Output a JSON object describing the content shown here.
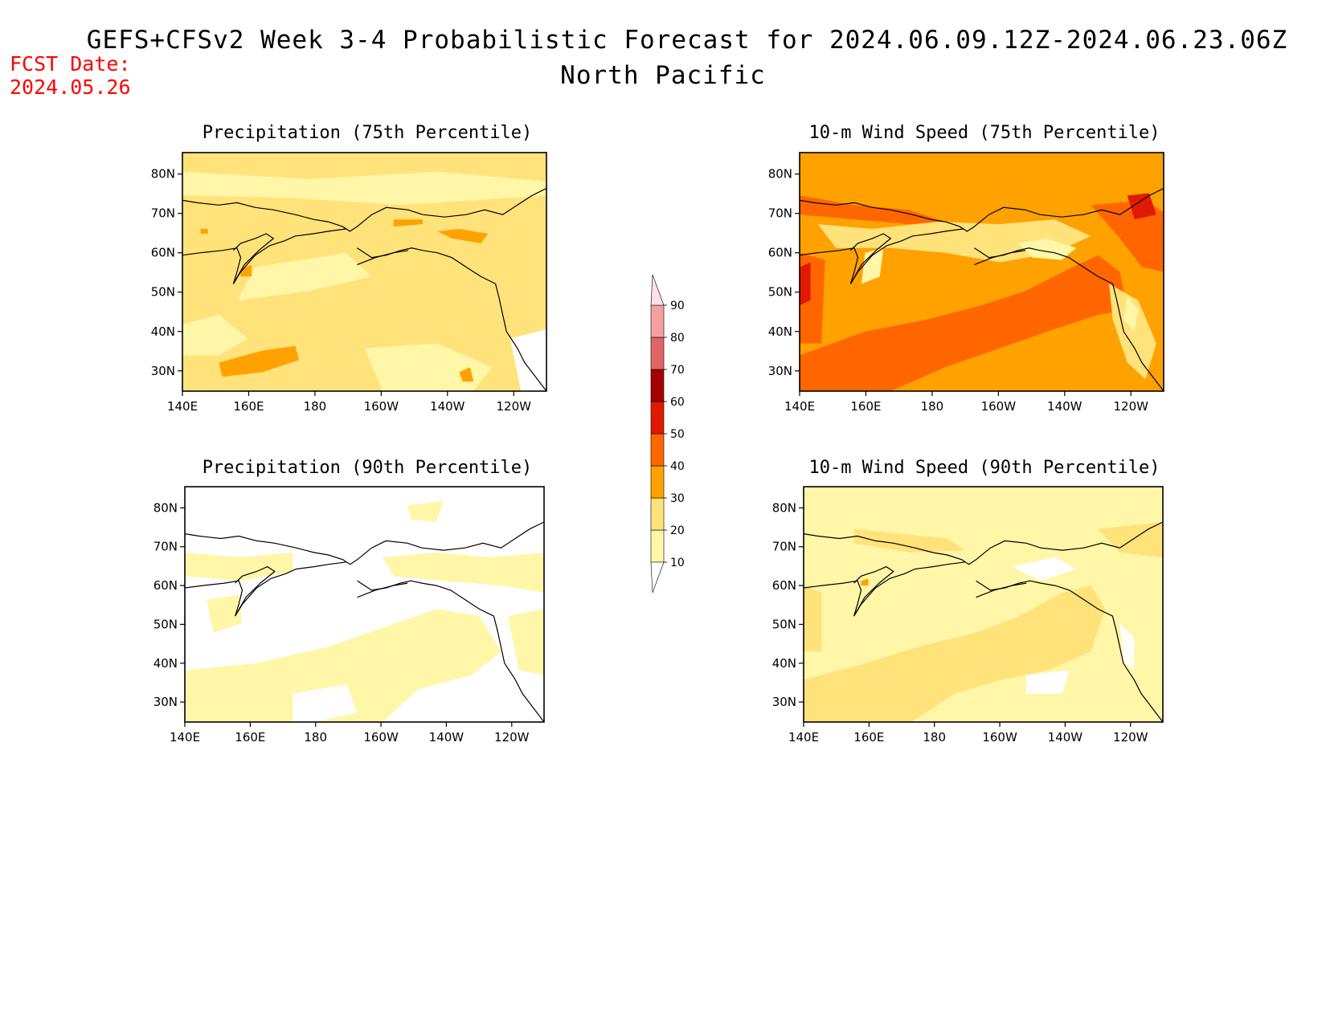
{
  "header": {
    "title": "GEFS+CFSv2 Week 3-4 Probabilistic Forecast for 2024.06.09.12Z-2024.06.23.06Z",
    "subtitle": "North Pacific",
    "fcst_label": "FCST Date:",
    "fcst_date": "2024.05.26"
  },
  "axes": {
    "lat_ticks": [
      "80N",
      "70N",
      "60N",
      "50N",
      "40N",
      "30N"
    ],
    "lon_ticks": [
      "140E",
      "160E",
      "180",
      "160W",
      "140W",
      "120W"
    ]
  },
  "panels": [
    {
      "title": "Precipitation (75th Percentile)",
      "base_level": "20-30",
      "pattern": "precip75"
    },
    {
      "title": "10-m Wind Speed (75th Percentile)",
      "base_level": "30-40",
      "pattern": "wind75"
    },
    {
      "title": "Precipitation (90th Percentile)",
      "base_level": "0-10",
      "pattern": "precip90"
    },
    {
      "title": "10-m Wind Speed (90th Percentile)",
      "base_level": "10-20",
      "pattern": "wind90"
    }
  ],
  "colorbar": {
    "levels": [
      "10",
      "20",
      "30",
      "40",
      "50",
      "60",
      "70",
      "80",
      "90"
    ],
    "colors": {
      "0-10": "#ffffff",
      "10-20": "#fff6a8",
      "20-30": "#ffe27a",
      "30-40": "#ffa200",
      "40-50": "#ff6600",
      "50-60": "#e01a00",
      "60-70": "#a50000",
      "70-80": "#e06666",
      "80-90": "#f4a0a0",
      "90-100": "#ffe0e6"
    }
  }
}
